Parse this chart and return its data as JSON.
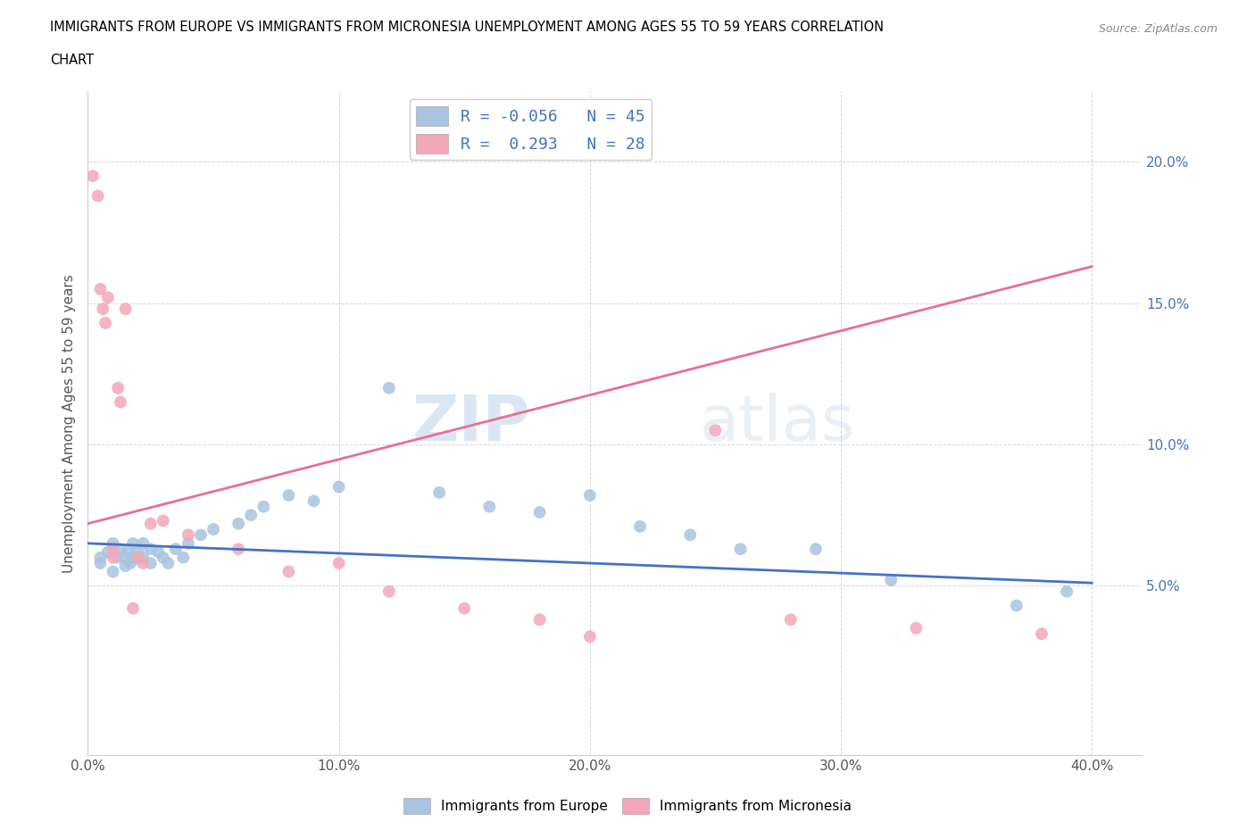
{
  "title_line1": "IMMIGRANTS FROM EUROPE VS IMMIGRANTS FROM MICRONESIA UNEMPLOYMENT AMONG AGES 55 TO 59 YEARS CORRELATION",
  "title_line2": "CHART",
  "source_text": "Source: ZipAtlas.com",
  "ylabel": "Unemployment Among Ages 55 to 59 years",
  "xlim": [
    0.0,
    0.42
  ],
  "ylim": [
    -0.01,
    0.225
  ],
  "xtick_labels": [
    "0.0%",
    "10.0%",
    "20.0%",
    "30.0%",
    "40.0%"
  ],
  "xtick_vals": [
    0.0,
    0.1,
    0.2,
    0.3,
    0.4
  ],
  "ytick_labels": [
    "5.0%",
    "10.0%",
    "15.0%",
    "20.0%"
  ],
  "ytick_vals": [
    0.05,
    0.1,
    0.15,
    0.2
  ],
  "europe_color": "#a8c4e0",
  "micronesia_color": "#f4a7b9",
  "europe_line_color": "#4472c4",
  "micronesia_line_color": "#e87090",
  "europe_R": -0.056,
  "europe_N": 45,
  "micronesia_R": 0.293,
  "micronesia_N": 28,
  "watermark_zip": "ZIP",
  "watermark_atlas": "atlas",
  "europe_scatter_x": [
    0.005,
    0.005,
    0.008,
    0.01,
    0.01,
    0.012,
    0.013,
    0.015,
    0.015,
    0.016,
    0.017,
    0.018,
    0.018,
    0.02,
    0.02,
    0.022,
    0.022,
    0.025,
    0.025,
    0.028,
    0.03,
    0.032,
    0.035,
    0.038,
    0.04,
    0.045,
    0.05,
    0.06,
    0.065,
    0.07,
    0.08,
    0.09,
    0.1,
    0.12,
    0.14,
    0.16,
    0.18,
    0.2,
    0.22,
    0.24,
    0.26,
    0.29,
    0.32,
    0.37,
    0.39
  ],
  "europe_scatter_y": [
    0.06,
    0.058,
    0.062,
    0.065,
    0.055,
    0.06,
    0.063,
    0.057,
    0.06,
    0.062,
    0.058,
    0.065,
    0.06,
    0.06,
    0.062,
    0.065,
    0.06,
    0.063,
    0.058,
    0.062,
    0.06,
    0.058,
    0.063,
    0.06,
    0.065,
    0.068,
    0.07,
    0.072,
    0.075,
    0.078,
    0.082,
    0.08,
    0.085,
    0.12,
    0.083,
    0.078,
    0.076,
    0.082,
    0.071,
    0.068,
    0.063,
    0.063,
    0.052,
    0.043,
    0.048
  ],
  "micronesia_scatter_x": [
    0.002,
    0.004,
    0.005,
    0.006,
    0.007,
    0.008,
    0.01,
    0.01,
    0.012,
    0.013,
    0.015,
    0.018,
    0.02,
    0.022,
    0.025,
    0.03,
    0.04,
    0.06,
    0.08,
    0.1,
    0.12,
    0.15,
    0.18,
    0.2,
    0.25,
    0.28,
    0.33,
    0.38
  ],
  "micronesia_scatter_y": [
    0.195,
    0.188,
    0.155,
    0.148,
    0.143,
    0.152,
    0.063,
    0.06,
    0.12,
    0.115,
    0.148,
    0.042,
    0.06,
    0.058,
    0.072,
    0.073,
    0.068,
    0.063,
    0.055,
    0.058,
    0.048,
    0.042,
    0.038,
    0.032,
    0.105,
    0.038,
    0.035,
    0.033
  ],
  "europe_trend": [
    0.0,
    0.4,
    0.065,
    0.051
  ],
  "micronesia_trend": [
    0.0,
    0.4,
    0.072,
    0.163
  ]
}
